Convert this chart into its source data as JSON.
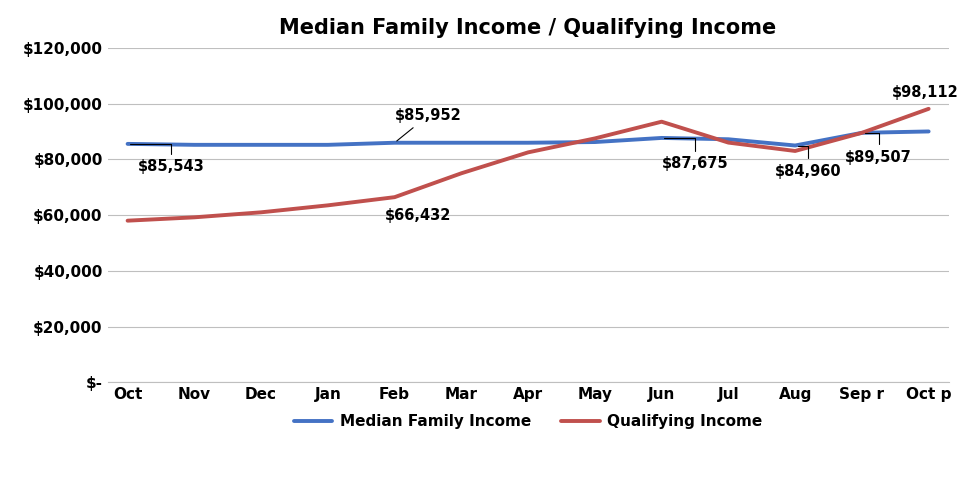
{
  "title": "Median Family Income / Qualifying Income",
  "months": [
    "Oct",
    "Nov",
    "Dec",
    "Jan",
    "Feb",
    "Mar",
    "Apr",
    "May",
    "Jun",
    "Jul",
    "Aug",
    "Sep r",
    "Oct p"
  ],
  "mfi_values": [
    85543,
    85200,
    85200,
    85200,
    85952,
    85952,
    85952,
    86200,
    87675,
    87200,
    84960,
    89507,
    90000
  ],
  "qi_values": [
    58000,
    59200,
    61000,
    63500,
    66432,
    75000,
    82500,
    87500,
    93500,
    86000,
    83000,
    89507,
    98112
  ],
  "mfi_color": "#4472C4",
  "qi_color": "#C0504D",
  "ylim": [
    0,
    120000
  ],
  "yticks": [
    0,
    20000,
    40000,
    60000,
    80000,
    100000,
    120000
  ],
  "legend_labels": [
    "Median Family Income",
    "Qualifying Income"
  ],
  "background_color": "#FFFFFF",
  "grid_color": "#BFBFBF",
  "title_fontsize": 15,
  "tick_fontsize": 11,
  "annotation_fontsize": 10.5,
  "legend_fontsize": 11
}
